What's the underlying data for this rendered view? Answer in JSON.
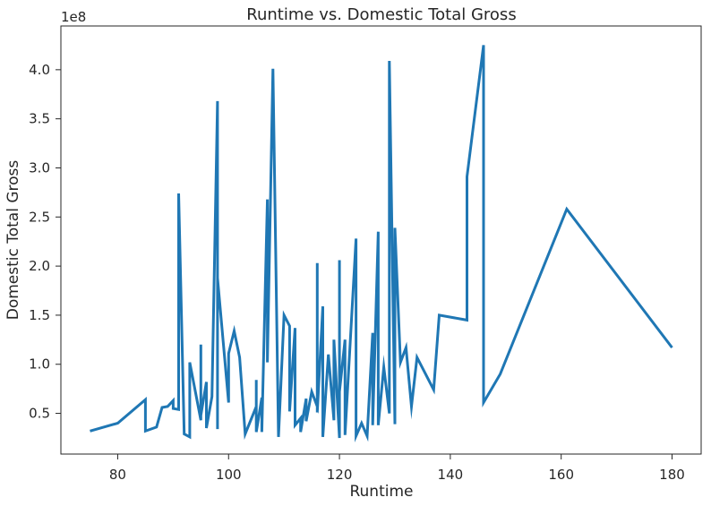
{
  "chart_data": {
    "type": "line",
    "title": "Runtime vs. Domestic Total Gross",
    "xlabel": "Runtime",
    "ylabel": "Domestic Total Gross",
    "offset_text": "1e8",
    "xlim": [
      69.75,
      185.25
    ],
    "ylim": [
      0.0855,
      4.4456
    ],
    "x_ticks": [
      80,
      100,
      120,
      140,
      160,
      180
    ],
    "y_ticks": [
      0.5,
      1.0,
      1.5,
      2.0,
      2.5,
      3.0,
      3.5,
      4.0
    ],
    "y_tick_labels": [
      "0.5",
      "1.0",
      "1.5",
      "2.0",
      "2.5",
      "3.0",
      "3.5",
      "4.0"
    ],
    "grid": false,
    "line_color": "#1f77b4",
    "series": [
      {
        "points": [
          [
            75,
            0.32
          ],
          [
            80,
            0.4
          ],
          [
            85,
            0.64
          ],
          [
            85,
            0.32
          ],
          [
            87,
            0.36
          ],
          [
            88,
            0.56
          ],
          [
            89,
            0.57
          ],
          [
            90,
            0.63
          ],
          [
            90,
            0.55
          ],
          [
            91,
            0.54
          ],
          [
            91,
            2.74
          ],
          [
            92,
            0.29
          ],
          [
            93,
            0.26
          ],
          [
            93,
            1.02
          ],
          [
            95,
            0.43
          ],
          [
            95,
            1.2
          ],
          [
            95,
            0.48
          ],
          [
            96,
            0.82
          ],
          [
            96,
            0.35
          ],
          [
            97,
            0.67
          ],
          [
            98,
            3.68
          ],
          [
            98,
            0.34
          ],
          [
            98,
            1.88
          ],
          [
            100,
            0.61
          ],
          [
            100,
            1.11
          ],
          [
            101,
            1.34
          ],
          [
            102,
            1.07
          ],
          [
            103,
            0.29
          ],
          [
            105,
            0.57
          ],
          [
            105,
            0.84
          ],
          [
            105,
            0.31
          ],
          [
            106,
            0.66
          ],
          [
            106,
            0.31
          ],
          [
            107,
            2.68
          ],
          [
            107,
            1.02
          ],
          [
            108,
            4.01
          ],
          [
            109,
            0.26
          ],
          [
            110,
            1.5
          ],
          [
            111,
            1.39
          ],
          [
            111,
            0.52
          ],
          [
            112,
            1.37
          ],
          [
            112,
            0.38
          ],
          [
            113,
            0.45
          ],
          [
            113,
            0.31
          ],
          [
            114,
            0.65
          ],
          [
            114,
            0.42
          ],
          [
            115,
            0.72
          ],
          [
            116,
            0.57
          ],
          [
            116,
            2.03
          ],
          [
            116,
            0.51
          ],
          [
            117,
            1.59
          ],
          [
            117,
            0.26
          ],
          [
            118,
            1.1
          ],
          [
            119,
            0.43
          ],
          [
            119,
            1.25
          ],
          [
            120,
            0.25
          ],
          [
            120,
            2.06
          ],
          [
            120,
            0.72
          ],
          [
            121,
            1.25
          ],
          [
            121,
            0.28
          ],
          [
            123,
            2.28
          ],
          [
            123,
            0.27
          ],
          [
            124,
            0.4
          ],
          [
            125,
            0.27
          ],
          [
            126,
            1.32
          ],
          [
            126,
            0.38
          ],
          [
            127,
            2.35
          ],
          [
            127,
            0.38
          ],
          [
            128,
            0.97
          ],
          [
            129,
            0.5
          ],
          [
            129,
            4.09
          ],
          [
            130,
            0.39
          ],
          [
            130,
            2.39
          ],
          [
            131,
            1.02
          ],
          [
            132,
            1.17
          ],
          [
            133,
            0.57
          ],
          [
            134,
            1.07
          ],
          [
            137,
            0.74
          ],
          [
            138,
            1.5
          ],
          [
            143,
            1.45
          ],
          [
            143,
            2.91
          ],
          [
            146,
            4.25
          ],
          [
            146,
            0.61
          ],
          [
            149,
            0.9
          ],
          [
            161,
            2.58
          ],
          [
            180,
            1.17
          ]
        ]
      }
    ]
  }
}
